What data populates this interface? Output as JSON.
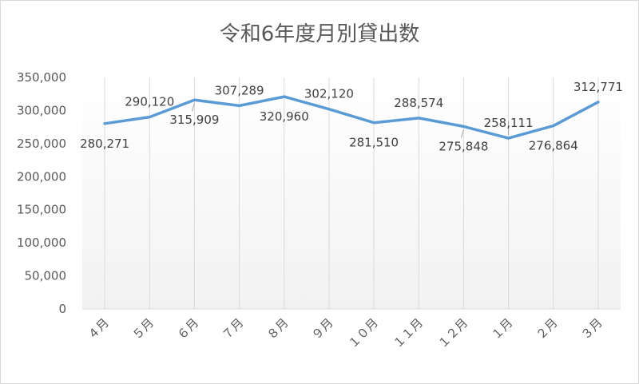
{
  "chart_data": {
    "type": "line",
    "title": "令和6年度月別貸出数",
    "categories": [
      "４月",
      "５月",
      "６月",
      "７月",
      "８月",
      "９月",
      "１０月",
      "１１月",
      "１２月",
      "１月",
      "２月",
      "３月"
    ],
    "series": [
      {
        "values": [
          280271,
          290120,
          315909,
          307289,
          320960,
          302120,
          281510,
          288574,
          275848,
          258111,
          276864,
          312771
        ],
        "labels": [
          "280,271",
          "290,120",
          "315,909",
          "307,289",
          "320,960",
          "302,120",
          "281,510",
          "288,574",
          "275,848",
          "258,111",
          "276,864",
          "312,771"
        ]
      }
    ],
    "y_ticks": [
      "0",
      "50,000",
      "100,000",
      "150,000",
      "200,000",
      "250,000",
      "300,000",
      "350,000"
    ],
    "ylim": [
      0,
      350000
    ],
    "grid": "vertical",
    "legend": "none",
    "colors": {
      "line": "#5b9bd5",
      "grid": "#d9d9d9",
      "plot_top": "#ffffff",
      "plot_bottom": "#f2f2f2"
    }
  }
}
